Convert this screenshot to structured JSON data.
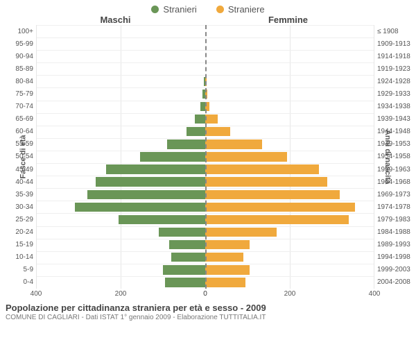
{
  "legend": {
    "male": {
      "label": "Stranieri",
      "color": "#6a9657"
    },
    "female": {
      "label": "Straniere",
      "color": "#f0a93d"
    }
  },
  "headers": {
    "male": "Maschi",
    "female": "Femmine"
  },
  "axis": {
    "left": "Fasce di età",
    "right": "Anni di nascita"
  },
  "chart": {
    "type": "population-pyramid",
    "xmax": 400,
    "xticks": [
      0,
      200,
      400
    ],
    "bar_colors": {
      "male": "#6a9657",
      "female": "#f0a93d"
    },
    "bg": "#ffffff",
    "grid_color": "#e6e6e6",
    "age_labels": [
      "100+",
      "95-99",
      "90-94",
      "85-89",
      "80-84",
      "75-79",
      "70-74",
      "65-69",
      "60-64",
      "55-59",
      "50-54",
      "45-49",
      "40-44",
      "35-39",
      "30-34",
      "25-29",
      "20-24",
      "15-19",
      "10-14",
      "5-9",
      "0-4"
    ],
    "year_labels": [
      "≤ 1908",
      "1909-1913",
      "1914-1918",
      "1919-1923",
      "1924-1928",
      "1929-1933",
      "1934-1938",
      "1939-1943",
      "1944-1948",
      "1949-1953",
      "1954-1958",
      "1959-1963",
      "1964-1968",
      "1969-1973",
      "1974-1978",
      "1979-1983",
      "1984-1988",
      "1989-1993",
      "1994-1998",
      "1999-2003",
      "2004-2008"
    ],
    "male": [
      0,
      0,
      0,
      0,
      4,
      6,
      12,
      25,
      45,
      90,
      155,
      235,
      260,
      280,
      310,
      205,
      110,
      85,
      80,
      100,
      95
    ],
    "female": [
      0,
      0,
      0,
      0,
      3,
      5,
      10,
      30,
      60,
      135,
      195,
      270,
      290,
      320,
      355,
      340,
      170,
      105,
      90,
      105,
      95
    ]
  },
  "footer": {
    "title": "Popolazione per cittadinanza straniera per età e sesso - 2009",
    "subtitle": "COMUNE DI CAGLIARI - Dati ISTAT 1° gennaio 2009 - Elaborazione TUTTITALIA.IT"
  }
}
